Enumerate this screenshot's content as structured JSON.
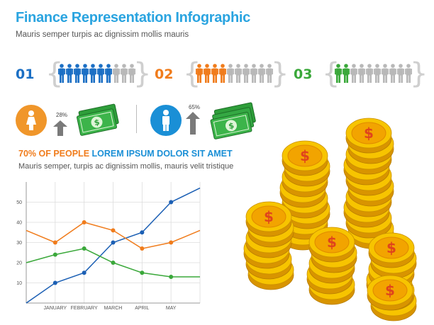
{
  "header": {
    "title": "Finance Representation Infographic",
    "subtitle": "Mauris semper turpis ac dignissim mollis mauris"
  },
  "rows": [
    {
      "label": "01",
      "color": "#1b6fc4",
      "filled": 7,
      "total": 10
    },
    {
      "label": "02",
      "color": "#f07c1c",
      "filled": 4,
      "total": 10
    },
    {
      "label": "03",
      "color": "#3aa83a",
      "filled": 2,
      "total": 10
    }
  ],
  "stats": [
    {
      "gender": "female",
      "circle_color": "#f0962a",
      "percent": "28%"
    },
    {
      "gender": "male",
      "circle_color": "#1a8fd6",
      "percent": "65%"
    }
  ],
  "headline": {
    "part1": "70% OF PEOPLE ",
    "part2": "LOREM IPSUM DOLOR SIT AMET",
    "sub": "Mauris semper, turpis ac dignissim mollis, mauris velit tristique"
  },
  "chart_data": {
    "type": "line",
    "categories": [
      "",
      "JANUARY",
      "FEBRUARY",
      "MARCH",
      "APRIL",
      "MAY",
      ""
    ],
    "ylim": [
      0,
      60
    ],
    "yticks": [
      10,
      20,
      30,
      40,
      50
    ],
    "grid": true,
    "series": [
      {
        "color": "#1b5fb4",
        "values": [
          0,
          10,
          15,
          30,
          35,
          50,
          57
        ]
      },
      {
        "color": "#f07c1c",
        "values": [
          36,
          30,
          40,
          36,
          27,
          30,
          36
        ]
      },
      {
        "color": "#3aa83a",
        "values": [
          20,
          24,
          27,
          20,
          15,
          13,
          13
        ]
      }
    ]
  }
}
